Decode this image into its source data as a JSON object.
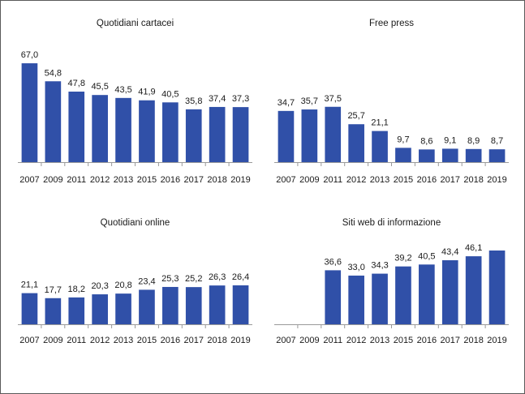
{
  "chart_data": [
    {
      "type": "bar",
      "title": "Quotidiani cartacei",
      "categories": [
        "2007",
        "2009",
        "2011",
        "2012",
        "2013",
        "2015",
        "2016",
        "2017",
        "2018",
        "2019"
      ],
      "values": [
        67.0,
        54.8,
        47.8,
        45.5,
        43.5,
        41.9,
        40.5,
        35.8,
        37.4,
        37.3
      ],
      "labels": [
        "67,0",
        "54,8",
        "47,8",
        "45,5",
        "43,5",
        "41,9",
        "40,5",
        "35,8",
        "37,4",
        "37,3"
      ],
      "ylim": [
        0,
        67
      ],
      "color": "#3050a8"
    },
    {
      "type": "bar",
      "title": "Free press",
      "categories": [
        "2007",
        "2009",
        "2011",
        "2012",
        "2013",
        "2015",
        "2016",
        "2017",
        "2018",
        "2019"
      ],
      "values": [
        34.7,
        35.7,
        37.5,
        25.7,
        21.1,
        9.7,
        8.6,
        9.1,
        8.9,
        8.7
      ],
      "labels": [
        "34,7",
        "35,7",
        "37,5",
        "25,7",
        "21,1",
        "9,7",
        "8,6",
        "9,1",
        "8,9",
        "8,7"
      ],
      "ylim": [
        0,
        67
      ],
      "color": "#3050a8"
    },
    {
      "type": "bar",
      "title": "Quotidiani online",
      "categories": [
        "2007",
        "2009",
        "2011",
        "2012",
        "2013",
        "2015",
        "2016",
        "2017",
        "2018",
        "2019"
      ],
      "values": [
        21.1,
        17.7,
        18.2,
        20.3,
        20.8,
        23.4,
        25.3,
        25.2,
        26.3,
        26.4
      ],
      "labels": [
        "21,1",
        "17,7",
        "18,2",
        "20,3",
        "20,8",
        "23,4",
        "25,3",
        "25,2",
        "26,3",
        "26,4"
      ],
      "ylim": [
        0,
        67
      ],
      "color": "#3050a8"
    },
    {
      "type": "bar",
      "title": "Siti web di informazione",
      "categories": [
        "2007",
        "2009",
        "2011",
        "2012",
        "2013",
        "2015",
        "2016",
        "2017",
        "2018",
        "2019"
      ],
      "values": [
        null,
        null,
        36.6,
        33.0,
        34.3,
        39.2,
        40.5,
        43.4,
        46.1,
        50.0
      ],
      "labels": [
        "",
        "",
        "36,6",
        "33,0",
        "34,3",
        "39,2",
        "40,5",
        "43,4",
        "46,1",
        ""
      ],
      "ylim": [
        0,
        67
      ],
      "color": "#3050a8"
    }
  ]
}
